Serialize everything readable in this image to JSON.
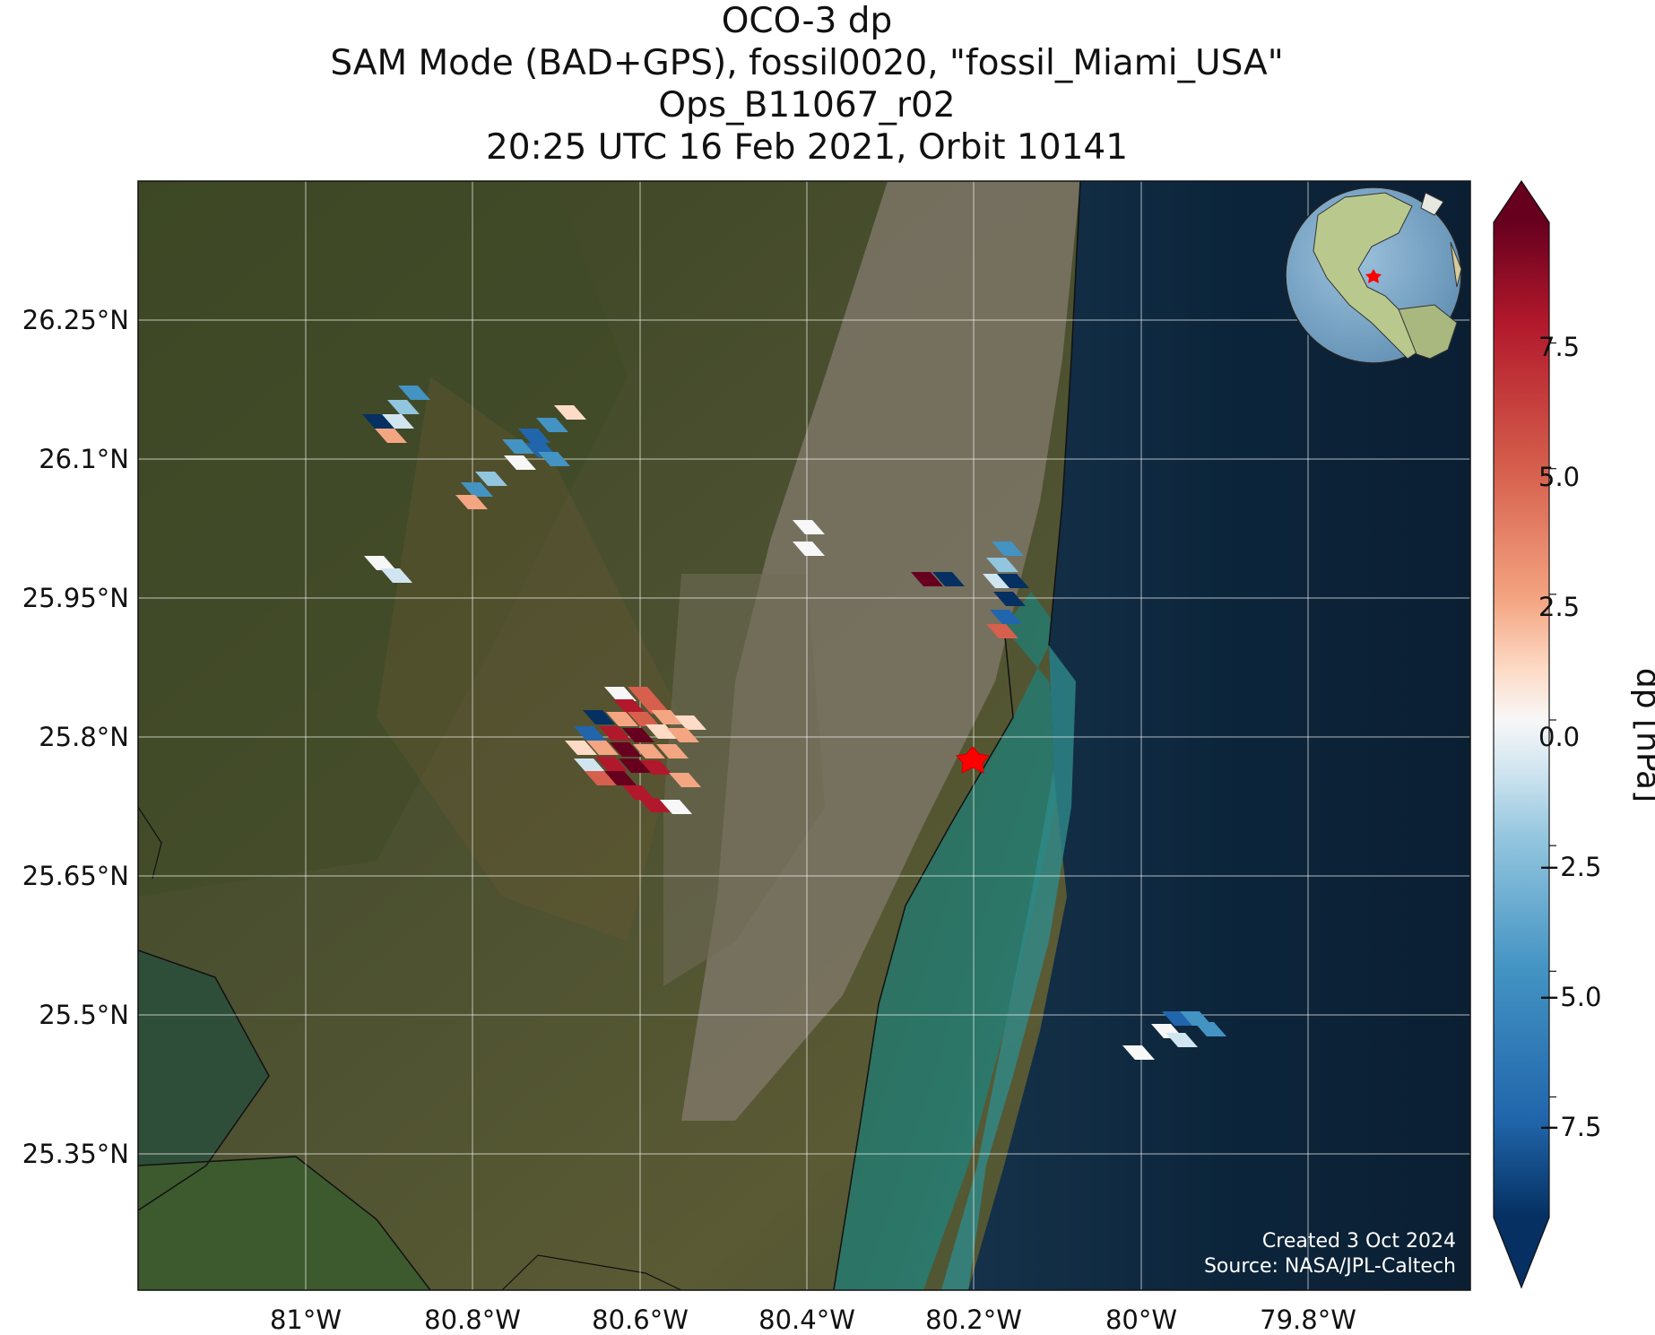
{
  "title": {
    "line1": "OCO-3 dp",
    "line2": "SAM Mode (BAD+GPS), fossil0020, \"fossil_Miami_USA\"",
    "line3": "Ops_B11067_r02",
    "line4": "20:25 UTC 16 Feb 2021, Orbit 10141"
  },
  "map": {
    "lon_range": [
      -81.19,
      -79.63
    ],
    "lat_range": [
      25.21,
      26.39
    ],
    "lat_ticks": [
      "26.25°N",
      "26.1°N",
      "25.95°N",
      "25.8°N",
      "25.65°N",
      "25.5°N",
      "25.35°N"
    ],
    "lon_ticks": [
      "81°W",
      "80.8°W",
      "80.6°W",
      "80.4°W",
      "80.2°W",
      "80°W",
      "79.8°W"
    ],
    "target": {
      "name": "fossil_Miami_USA",
      "lon": -80.19,
      "lat": 25.775,
      "color": "#ff0000"
    },
    "basemap": "satellite imagery",
    "gridlines": true
  },
  "colorbar": {
    "label": "dp [hPa]",
    "ticks": [
      "7.5",
      "5.0",
      "2.5",
      "0.0",
      "−2.5",
      "−5.0",
      "−7.5"
    ],
    "tick_values": [
      7.5,
      5.0,
      2.5,
      0.0,
      -2.5,
      -5.0,
      -7.5
    ],
    "range": [
      -9.9,
      9.9
    ],
    "colormap": "RdBu_r",
    "extend": "both"
  },
  "credits": {
    "created": "Created 3 Oct 2024",
    "source": "Source: NASA/JPL-Caltech"
  },
  "globe": {
    "marker_color": "#ff0000"
  }
}
